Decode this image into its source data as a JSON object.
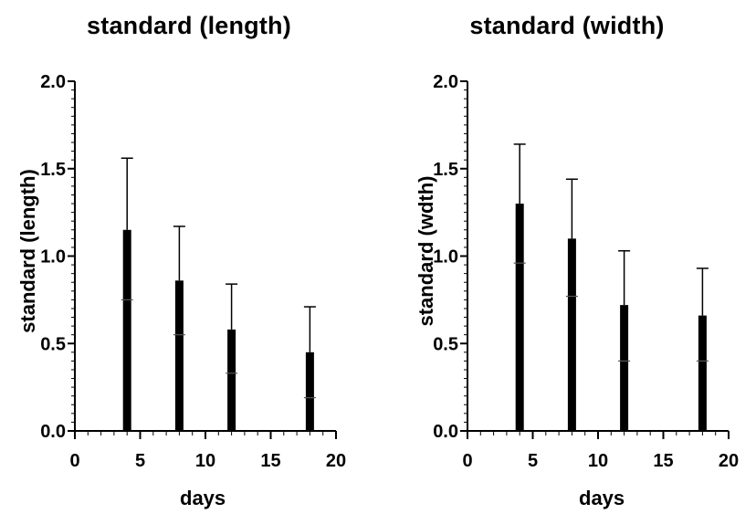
{
  "chart_data": [
    {
      "type": "bar",
      "title": "standard (length)",
      "xlabel": "days",
      "ylabel": "standard (length)",
      "xlim": [
        0,
        20
      ],
      "ylim": [
        0,
        2.0
      ],
      "xticks": [
        "0",
        "5",
        "10",
        "15",
        "20"
      ],
      "yticks": [
        "0.0",
        "0.5",
        "1.0",
        "1.5",
        "2.0"
      ],
      "grid": false,
      "series": [
        {
          "x": [
            4,
            8,
            12,
            18
          ],
          "values": [
            1.15,
            0.86,
            0.58,
            0.45
          ],
          "error_upper": [
            1.56,
            1.17,
            0.84,
            0.71
          ],
          "error_lower": [
            0.75,
            0.55,
            0.33,
            0.19
          ]
        }
      ]
    },
    {
      "type": "bar",
      "title": "standard (width)",
      "xlabel": "days",
      "ylabel": "standard (wdth)",
      "xlim": [
        0,
        20
      ],
      "ylim": [
        0,
        2.0
      ],
      "xticks": [
        "0",
        "5",
        "10",
        "15",
        "20"
      ],
      "yticks": [
        "0.0",
        "0.5",
        "1.0",
        "1.5",
        "2.0"
      ],
      "grid": false,
      "series": [
        {
          "x": [
            4,
            8,
            12,
            18
          ],
          "values": [
            1.3,
            1.1,
            0.72,
            0.66
          ],
          "error_upper": [
            1.64,
            1.44,
            1.03,
            0.93
          ],
          "error_lower": [
            0.96,
            0.77,
            0.4,
            0.4
          ]
        }
      ]
    }
  ]
}
